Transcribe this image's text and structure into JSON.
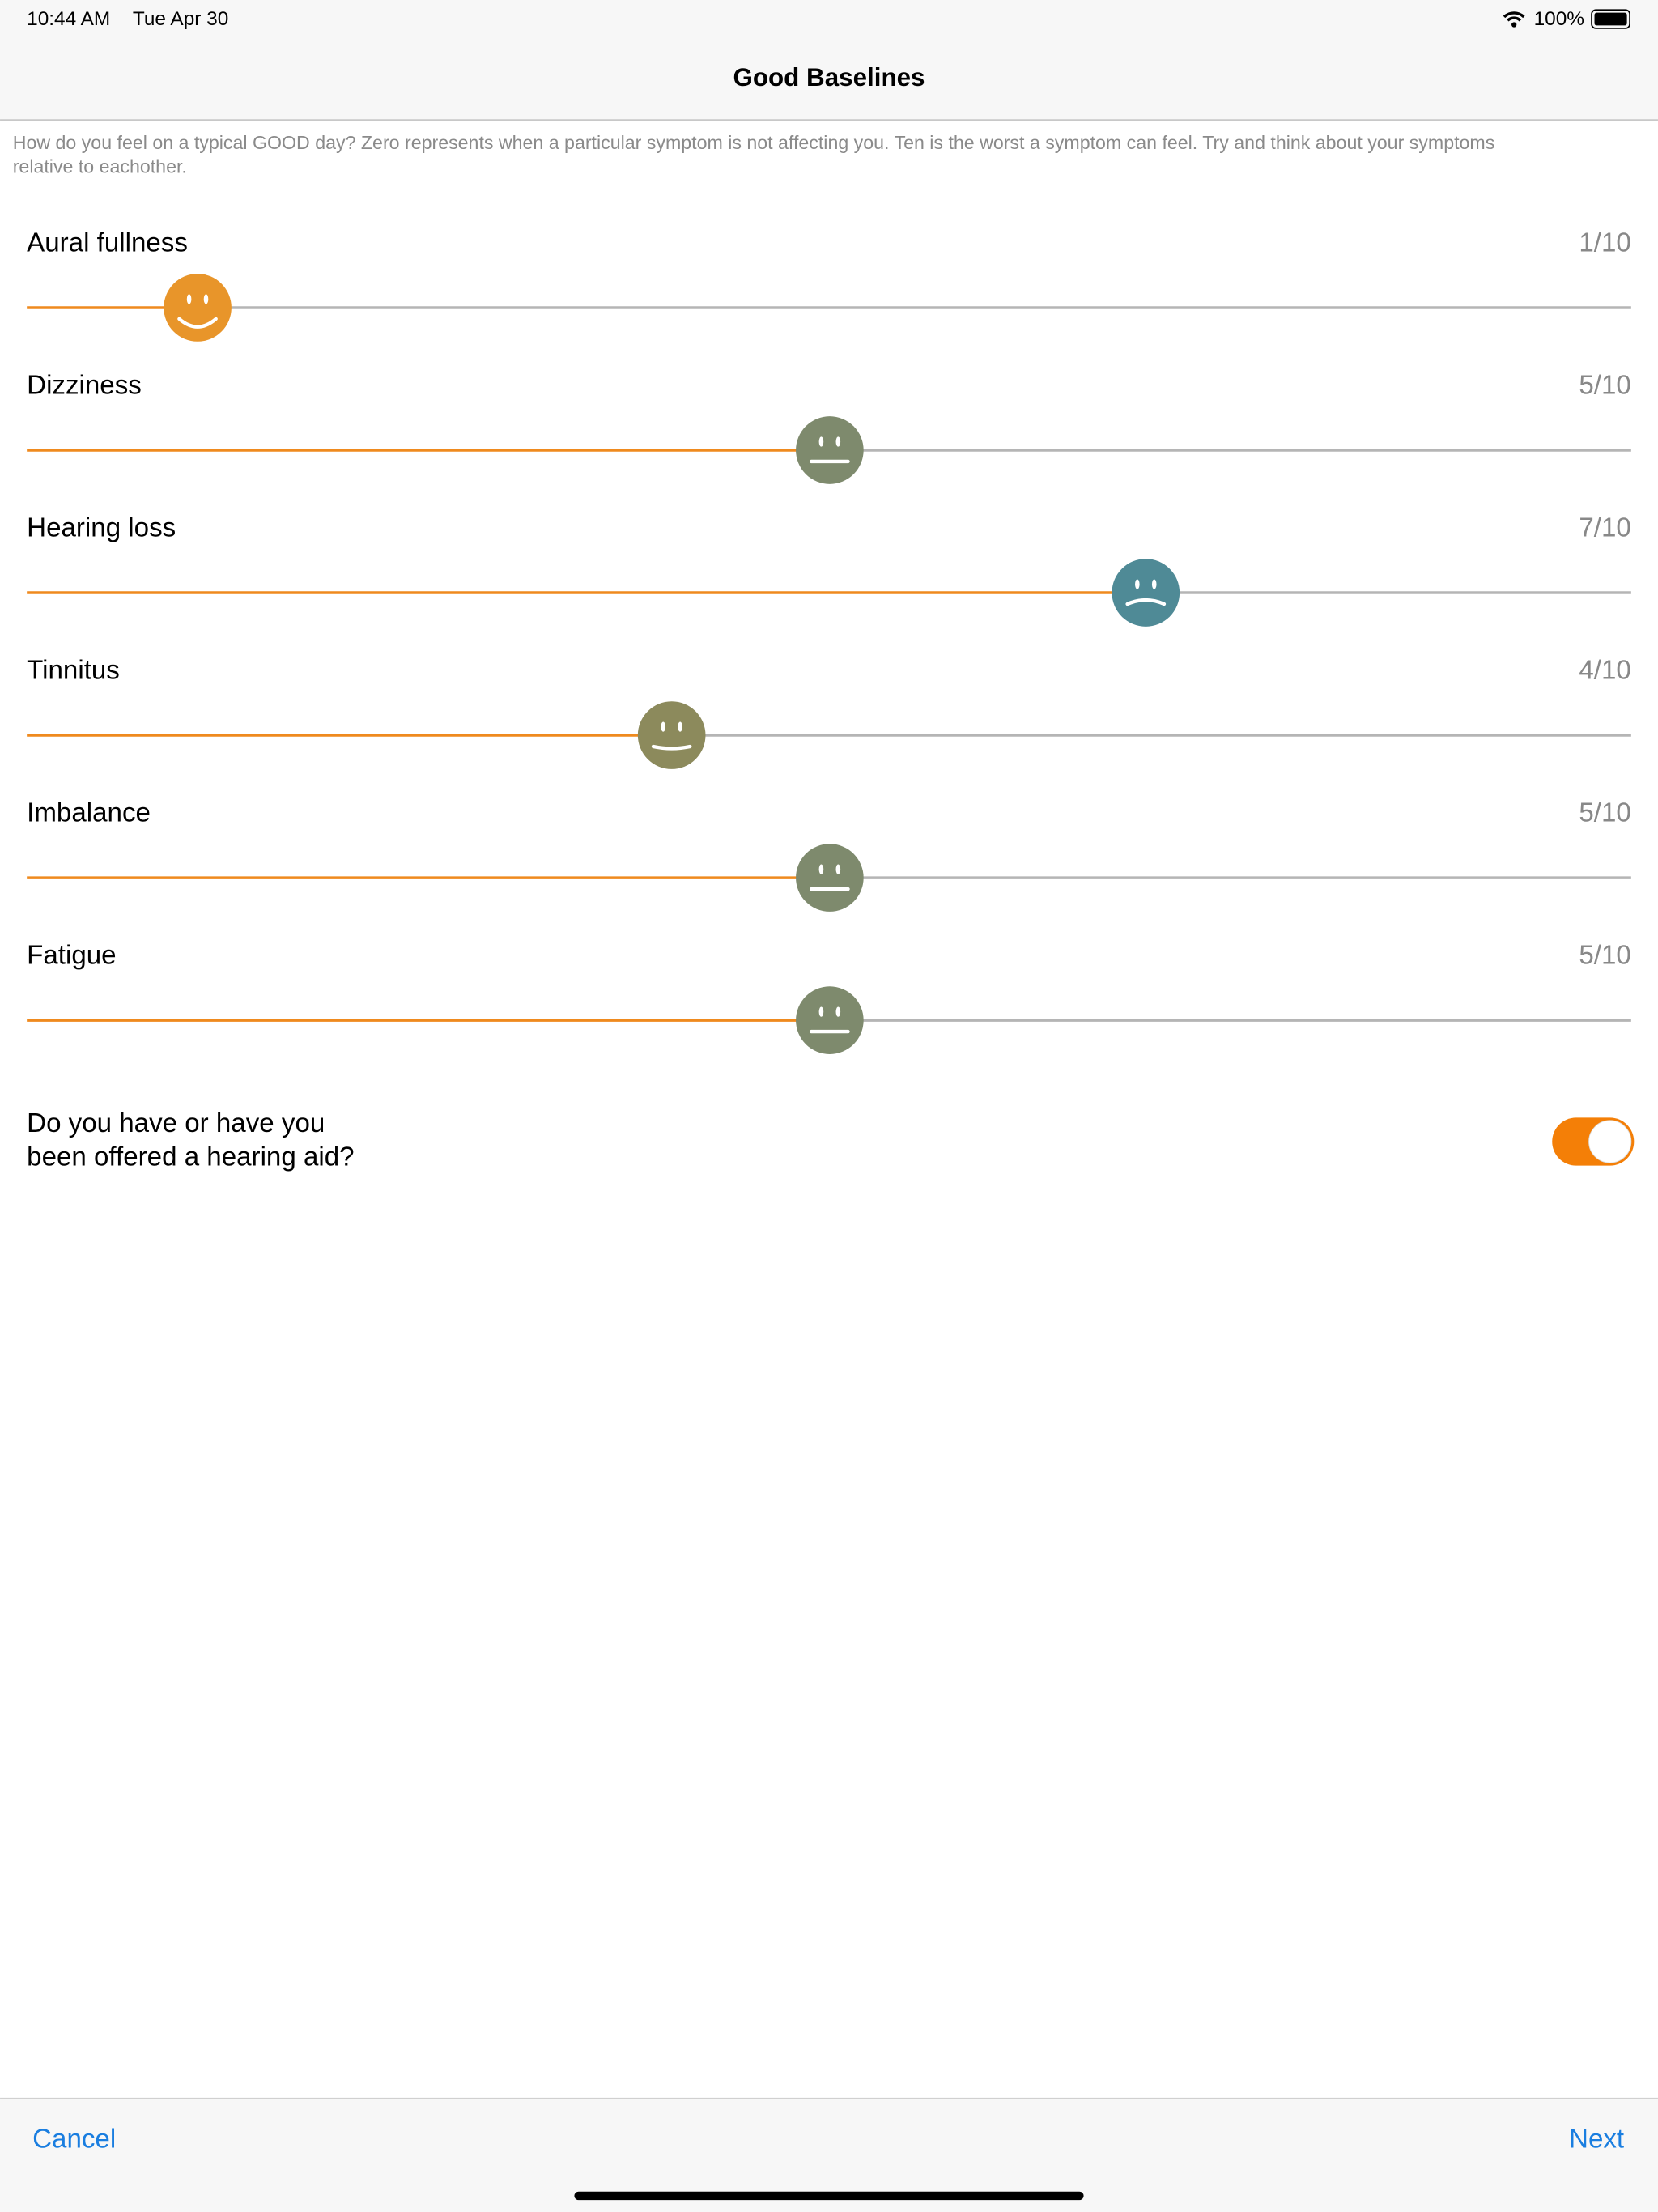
{
  "status_bar": {
    "time": "10:44 AM",
    "date": "Tue Apr 30",
    "battery": "100%"
  },
  "header": {
    "title": "Good Baselines"
  },
  "instructions": [
    "How do you feel on a typical GOOD day? Zero represents when a particular symptom is not affecting you. Ten is the worst a symptom can feel. Try and think about your symptoms",
    "relative to eachother."
  ],
  "sliders": [
    {
      "name": "Aural fullness",
      "value": 1,
      "value_label": "1/10",
      "max": 10,
      "color": "#e8952a"
    },
    {
      "name": "Dizziness",
      "value": 5,
      "value_label": "5/10",
      "max": 10,
      "color": "#7e8a6d"
    },
    {
      "name": "Hearing loss",
      "value": 7,
      "value_label": "7/10",
      "max": 10,
      "color": "#4f8a96"
    },
    {
      "name": "Tinnitus",
      "value": 4,
      "value_label": "4/10",
      "max": 10,
      "color": "#8c8a5c"
    },
    {
      "name": "Imbalance",
      "value": 5,
      "value_label": "5/10",
      "max": 10,
      "color": "#7e8a6d"
    },
    {
      "name": "Fatigue",
      "value": 5,
      "value_label": "5/10",
      "max": 10,
      "color": "#7e8a6d"
    }
  ],
  "question": {
    "lines": [
      "Do you have or have you",
      "been offered a hearing aid?"
    ],
    "on": true
  },
  "footer": {
    "cancel": "Cancel",
    "next": "Next"
  }
}
